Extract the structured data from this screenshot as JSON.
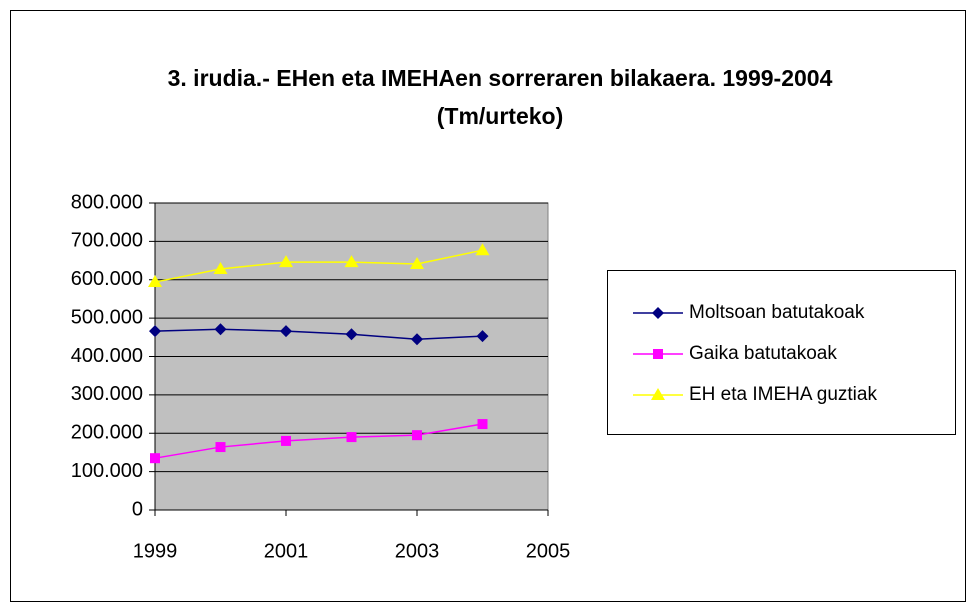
{
  "chart_data": {
    "type": "line",
    "title": [
      "3. irudia.- EHen eta IMEHAen sorreraren bilakaera. 1999-2004",
      "(Tm/urteko)"
    ],
    "x": [
      1999,
      2000,
      2001,
      2002,
      2003,
      2004
    ],
    "xlim": [
      1999,
      2005
    ],
    "xticks": [
      1999,
      2001,
      2003,
      2005
    ],
    "ylim": [
      0,
      800000
    ],
    "yticks": [
      0,
      {
        "value": 100000,
        "label": "100.000"
      },
      {
        "value": 200000,
        "label": "200.000"
      },
      {
        "value": 300000,
        "label": "300.000"
      },
      {
        "value": 400000,
        "label": "400.000"
      },
      {
        "value": 500000,
        "label": "500.000"
      },
      {
        "value": 600000,
        "label": "600.000"
      },
      {
        "value": 700000,
        "label": "700.000"
      },
      {
        "value": 800000,
        "label": "800.000"
      }
    ],
    "grid": true,
    "legend": "right",
    "series": [
      {
        "name": "Moltsoan batutakoak",
        "color": "#000080",
        "marker": "diamond",
        "values": [
          466000,
          471000,
          466000,
          458000,
          445000,
          453000
        ]
      },
      {
        "name": "Gaika batutakoak",
        "color": "#ff00ff",
        "marker": "square",
        "values": [
          135000,
          164000,
          180000,
          190000,
          195000,
          224000
        ]
      },
      {
        "name": "EH eta IMEHA guztiak",
        "color": "#ffff00",
        "marker": "triangle",
        "values": [
          594000,
          628000,
          646000,
          646000,
          641000,
          677000
        ]
      }
    ]
  }
}
